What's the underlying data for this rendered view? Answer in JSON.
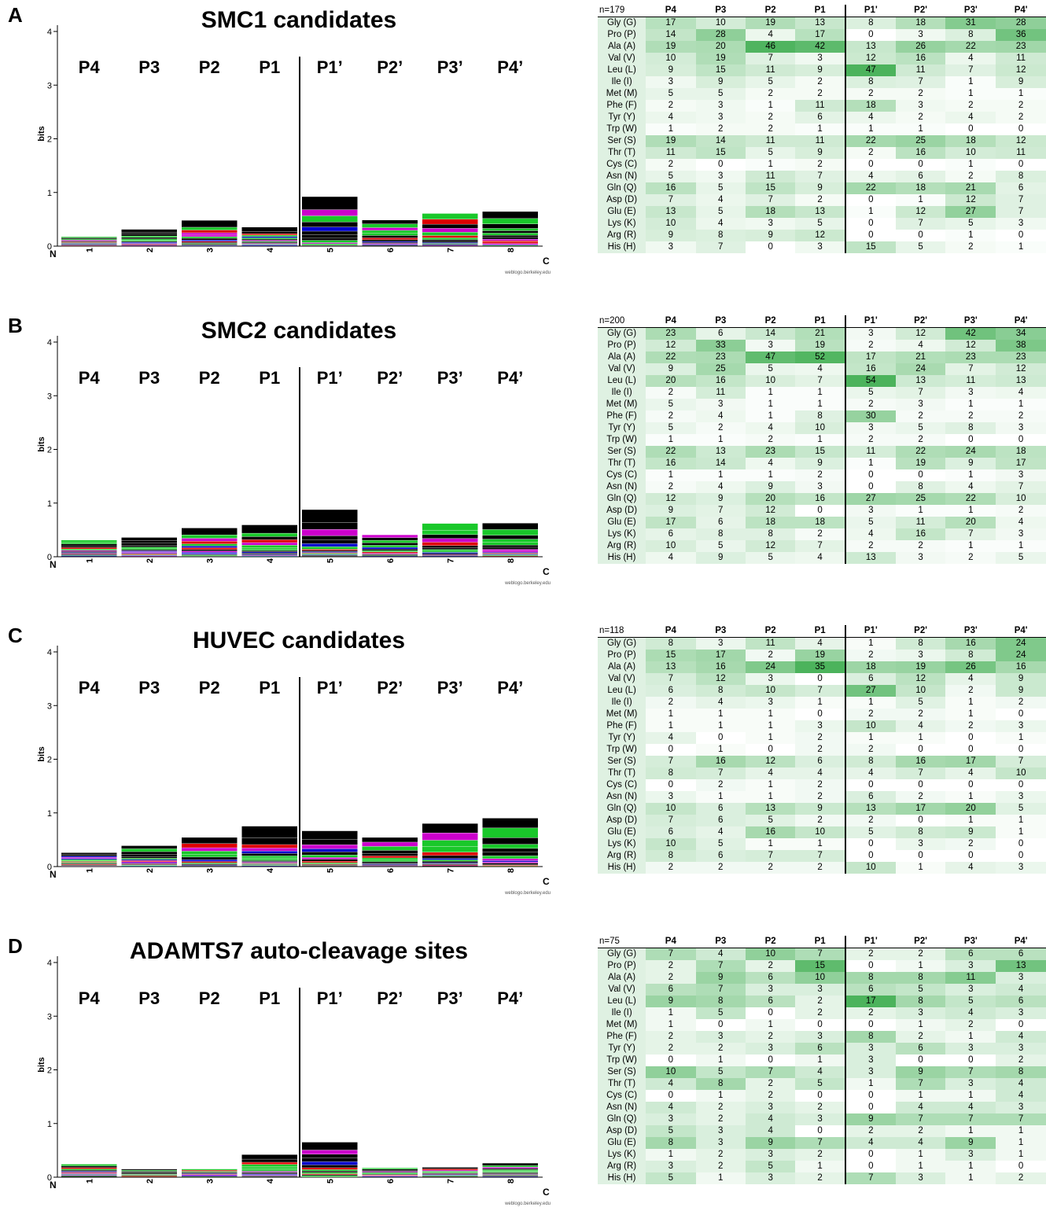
{
  "panels": [
    {
      "label": "A",
      "title": "SMC1 candidates",
      "n_label": "n=179",
      "values": [
        [
          17,
          10,
          19,
          13,
          8,
          18,
          31,
          28
        ],
        [
          14,
          28,
          4,
          17,
          0,
          3,
          8,
          36
        ],
        [
          19,
          20,
          46,
          42,
          13,
          26,
          22,
          23
        ],
        [
          10,
          19,
          7,
          3,
          12,
          16,
          4,
          11
        ],
        [
          9,
          15,
          11,
          9,
          47,
          11,
          7,
          12
        ],
        [
          3,
          9,
          5,
          2,
          8,
          7,
          1,
          9
        ],
        [
          5,
          5,
          2,
          2,
          2,
          2,
          1,
          1
        ],
        [
          2,
          3,
          1,
          11,
          18,
          3,
          2,
          2
        ],
        [
          4,
          3,
          2,
          6,
          4,
          2,
          4,
          2
        ],
        [
          1,
          2,
          2,
          1,
          1,
          1,
          0,
          0
        ],
        [
          19,
          14,
          11,
          11,
          22,
          25,
          18,
          12
        ],
        [
          11,
          15,
          5,
          9,
          2,
          16,
          10,
          11
        ],
        [
          2,
          0,
          1,
          2,
          0,
          0,
          1,
          0
        ],
        [
          5,
          3,
          11,
          7,
          4,
          6,
          2,
          8
        ],
        [
          16,
          5,
          15,
          9,
          22,
          18,
          21,
          6
        ],
        [
          7,
          4,
          7,
          2,
          0,
          1,
          12,
          7
        ],
        [
          13,
          5,
          18,
          13,
          1,
          12,
          27,
          7
        ],
        [
          10,
          4,
          3,
          5,
          0,
          7,
          5,
          3
        ],
        [
          9,
          8,
          9,
          12,
          0,
          0,
          1,
          0
        ],
        [
          3,
          7,
          0,
          3,
          15,
          5,
          2,
          1
        ]
      ]
    },
    {
      "label": "B",
      "title": "SMC2 candidates",
      "n_label": "n=200",
      "values": [
        [
          23,
          6,
          14,
          21,
          3,
          12,
          42,
          34
        ],
        [
          12,
          33,
          3,
          19,
          2,
          4,
          12,
          38
        ],
        [
          22,
          23,
          47,
          52,
          17,
          21,
          23,
          23
        ],
        [
          9,
          25,
          5,
          4,
          16,
          24,
          7,
          12
        ],
        [
          20,
          16,
          10,
          7,
          54,
          13,
          11,
          13
        ],
        [
          2,
          11,
          1,
          1,
          5,
          7,
          3,
          4
        ],
        [
          5,
          3,
          1,
          1,
          2,
          3,
          1,
          1
        ],
        [
          2,
          4,
          1,
          8,
          30,
          2,
          2,
          2
        ],
        [
          5,
          2,
          4,
          10,
          3,
          5,
          8,
          3
        ],
        [
          1,
          1,
          2,
          1,
          2,
          2,
          0,
          0
        ],
        [
          22,
          13,
          23,
          15,
          11,
          22,
          24,
          18
        ],
        [
          16,
          14,
          4,
          9,
          1,
          19,
          9,
          17
        ],
        [
          1,
          1,
          1,
          2,
          0,
          0,
          1,
          3
        ],
        [
          2,
          4,
          9,
          3,
          0,
          8,
          4,
          7
        ],
        [
          12,
          9,
          20,
          16,
          27,
          25,
          22,
          10
        ],
        [
          9,
          7,
          12,
          0,
          3,
          1,
          1,
          2
        ],
        [
          17,
          6,
          18,
          18,
          5,
          11,
          20,
          4
        ],
        [
          6,
          8,
          8,
          2,
          4,
          16,
          7,
          3
        ],
        [
          10,
          5,
          12,
          7,
          2,
          2,
          1,
          1
        ],
        [
          4,
          9,
          5,
          4,
          13,
          3,
          2,
          5
        ]
      ]
    },
    {
      "label": "C",
      "title": "HUVEC candidates",
      "n_label": "n=118",
      "values": [
        [
          8,
          3,
          11,
          4,
          1,
          8,
          16,
          24
        ],
        [
          15,
          17,
          2,
          19,
          2,
          3,
          8,
          24
        ],
        [
          13,
          16,
          24,
          35,
          18,
          19,
          26,
          16
        ],
        [
          7,
          12,
          3,
          0,
          6,
          12,
          4,
          9
        ],
        [
          6,
          8,
          10,
          7,
          27,
          10,
          2,
          9
        ],
        [
          2,
          4,
          3,
          1,
          1,
          5,
          1,
          2
        ],
        [
          1,
          1,
          1,
          0,
          2,
          2,
          1,
          0
        ],
        [
          1,
          1,
          1,
          3,
          10,
          4,
          2,
          3
        ],
        [
          4,
          0,
          1,
          2,
          1,
          1,
          0,
          1
        ],
        [
          0,
          1,
          0,
          2,
          2,
          0,
          0,
          0
        ],
        [
          7,
          16,
          12,
          6,
          8,
          16,
          17,
          7
        ],
        [
          8,
          7,
          4,
          4,
          4,
          7,
          4,
          10
        ],
        [
          0,
          2,
          1,
          2,
          0,
          0,
          0,
          0
        ],
        [
          3,
          1,
          1,
          2,
          6,
          2,
          1,
          3
        ],
        [
          10,
          6,
          13,
          9,
          13,
          17,
          20,
          5
        ],
        [
          7,
          6,
          5,
          2,
          2,
          0,
          1,
          1
        ],
        [
          6,
          4,
          16,
          10,
          5,
          8,
          9,
          1
        ],
        [
          10,
          5,
          1,
          1,
          0,
          3,
          2,
          0
        ],
        [
          8,
          6,
          7,
          7,
          0,
          0,
          0,
          0
        ],
        [
          2,
          2,
          2,
          2,
          10,
          1,
          4,
          3
        ]
      ]
    },
    {
      "label": "D",
      "title": "ADAMTS7 auto-cleavage sites",
      "n_label": "n=75",
      "values": [
        [
          7,
          4,
          10,
          7,
          2,
          2,
          6,
          6
        ],
        [
          2,
          7,
          2,
          15,
          0,
          1,
          3,
          13
        ],
        [
          2,
          9,
          6,
          10,
          8,
          8,
          11,
          3
        ],
        [
          6,
          7,
          3,
          3,
          6,
          5,
          3,
          4
        ],
        [
          9,
          8,
          6,
          2,
          17,
          8,
          5,
          6
        ],
        [
          1,
          5,
          0,
          2,
          2,
          3,
          4,
          3
        ],
        [
          1,
          0,
          1,
          0,
          0,
          1,
          2,
          0
        ],
        [
          2,
          3,
          2,
          3,
          8,
          2,
          1,
          4
        ],
        [
          2,
          2,
          3,
          6,
          3,
          6,
          3,
          3
        ],
        [
          0,
          1,
          0,
          1,
          3,
          0,
          0,
          2
        ],
        [
          10,
          5,
          7,
          4,
          3,
          9,
          7,
          8
        ],
        [
          4,
          8,
          2,
          5,
          1,
          7,
          3,
          4
        ],
        [
          0,
          1,
          2,
          0,
          0,
          1,
          1,
          4
        ],
        [
          4,
          2,
          3,
          2,
          0,
          4,
          4,
          3
        ],
        [
          3,
          2,
          4,
          3,
          9,
          7,
          7,
          7
        ],
        [
          5,
          3,
          4,
          0,
          2,
          2,
          1,
          1
        ],
        [
          8,
          3,
          9,
          7,
          4,
          4,
          9,
          1
        ],
        [
          1,
          2,
          3,
          2,
          0,
          1,
          3,
          1
        ],
        [
          3,
          2,
          5,
          1,
          0,
          1,
          1,
          0
        ],
        [
          5,
          1,
          3,
          2,
          7,
          3,
          1,
          2
        ]
      ]
    }
  ],
  "positions": [
    "P4",
    "P3",
    "P2",
    "P1",
    "P1'",
    "P2'",
    "P3'",
    "P4'"
  ],
  "logo_positions": [
    "P4",
    "P3",
    "P2",
    "P1",
    "P1’",
    "P2’",
    "P3’",
    "P4’"
  ],
  "amino_acids": [
    "Gly (G)",
    "Pro (P)",
    "Ala (A)",
    "Val (V)",
    "Leu (L)",
    "Ile (I)",
    "Met (M)",
    "Phe (F)",
    "Tyr (Y)",
    "Trp (W)",
    "Ser (S)",
    "Thr (T)",
    "Cys (C)",
    "Asn (N)",
    "Gln (Q)",
    "Asp (D)",
    "Glu (E)",
    "Lys (K)",
    "Arg (R)",
    "His (H)"
  ],
  "chart_data": [
    {
      "type": "heatmap",
      "title": "SMC1 candidates",
      "ylabel": "bits",
      "ylim": [
        0,
        4
      ],
      "y_ticks": [
        "0",
        "1",
        "2",
        "3",
        "4"
      ],
      "x_ticks": [
        "1",
        "2",
        "3",
        "4",
        "5",
        "6",
        "7",
        "8"
      ],
      "x_start_label": "N",
      "x_end_label": "C",
      "credit": "weblogo.berkeley.edu",
      "logo_heights_bits": [
        0.2,
        0.33,
        0.5,
        0.37,
        0.93,
        0.5,
        0.62,
        0.65
      ]
    },
    {
      "type": "heatmap",
      "title": "SMC2 candidates",
      "ylabel": "bits",
      "ylim": [
        0,
        4
      ],
      "y_ticks": [
        "0",
        "1",
        "2",
        "3",
        "4"
      ],
      "x_ticks": [
        "1",
        "2",
        "3",
        "4",
        "5",
        "6",
        "7",
        "8"
      ],
      "x_start_label": "N",
      "x_end_label": "C",
      "credit": "weblogo.berkeley.edu",
      "logo_heights_bits": [
        0.32,
        0.37,
        0.55,
        0.6,
        0.88,
        0.42,
        0.63,
        0.63
      ]
    },
    {
      "type": "heatmap",
      "title": "HUVEC candidates",
      "ylabel": "bits",
      "ylim": [
        0,
        4
      ],
      "y_ticks": [
        "0",
        "1",
        "2",
        "3",
        "4"
      ],
      "x_ticks": [
        "1",
        "2",
        "3",
        "4",
        "5",
        "6",
        "7",
        "8"
      ],
      "x_start_label": "N",
      "x_end_label": "C",
      "credit": "weblogo.berkeley.edu",
      "logo_heights_bits": [
        0.27,
        0.4,
        0.57,
        0.75,
        0.68,
        0.55,
        0.8,
        0.9
      ]
    },
    {
      "type": "heatmap",
      "title": "ADAMTS7 auto-cleavage sites",
      "ylabel": "bits",
      "ylim": [
        0,
        4
      ],
      "y_ticks": [
        "0",
        "1",
        "2",
        "3",
        "4"
      ],
      "x_ticks": [
        "1",
        "2",
        "3",
        "4",
        "5",
        "6",
        "7",
        "8"
      ],
      "x_start_label": "N",
      "x_end_label": "C",
      "credit": "weblogo.berkeley.edu",
      "logo_heights_bits": [
        0.25,
        0.18,
        0.17,
        0.43,
        0.65,
        0.2,
        0.2,
        0.27
      ]
    }
  ],
  "colors": {
    "heat_max": "#4cb35c",
    "heat_min": "#ffffff",
    "residue_black": "#000000",
    "residue_green": "#19c82a",
    "residue_magenta": "#cc00cc",
    "residue_blue": "#0000cc",
    "residue_red": "#dd0000"
  }
}
